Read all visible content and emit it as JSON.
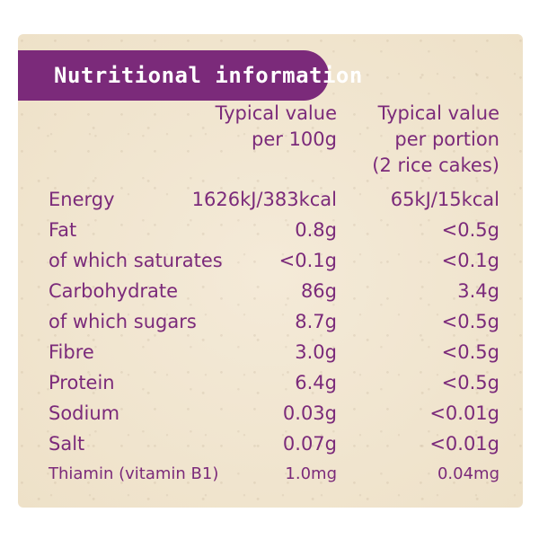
{
  "header": {
    "title": "Nutritional information"
  },
  "columns": {
    "per_100g": [
      "Typical value",
      "per 100g"
    ],
    "per_portion": [
      "Typical value",
      "per portion",
      "(2 rice cakes)"
    ]
  },
  "rows": [
    {
      "label": "Energy",
      "per_100g": "1626kJ/383kcal",
      "per_portion": "65kJ/15kcal"
    },
    {
      "label": "Fat",
      "per_100g": "0.8g",
      "per_portion": "<0.5g"
    },
    {
      "label": "of which saturates",
      "per_100g": "<0.1g",
      "per_portion": "<0.1g"
    },
    {
      "label": "Carbohydrate",
      "per_100g": "86g",
      "per_portion": "3.4g"
    },
    {
      "label": "of which sugars",
      "per_100g": "8.7g",
      "per_portion": "<0.5g"
    },
    {
      "label": "Fibre",
      "per_100g": "3.0g",
      "per_portion": "<0.5g"
    },
    {
      "label": "Protein",
      "per_100g": "6.4g",
      "per_portion": "<0.5g"
    },
    {
      "label": "Sodium",
      "per_100g": "0.03g",
      "per_portion": "<0.01g"
    },
    {
      "label": "Salt",
      "per_100g": "0.07g",
      "per_portion": "<0.01g"
    },
    {
      "label": "Thiamin (vitamin B1)",
      "per_100g": "1.0mg",
      "per_portion": "0.04mg"
    }
  ],
  "colors": {
    "purple": "#7b2a7a",
    "background": "#f1e6d2"
  }
}
